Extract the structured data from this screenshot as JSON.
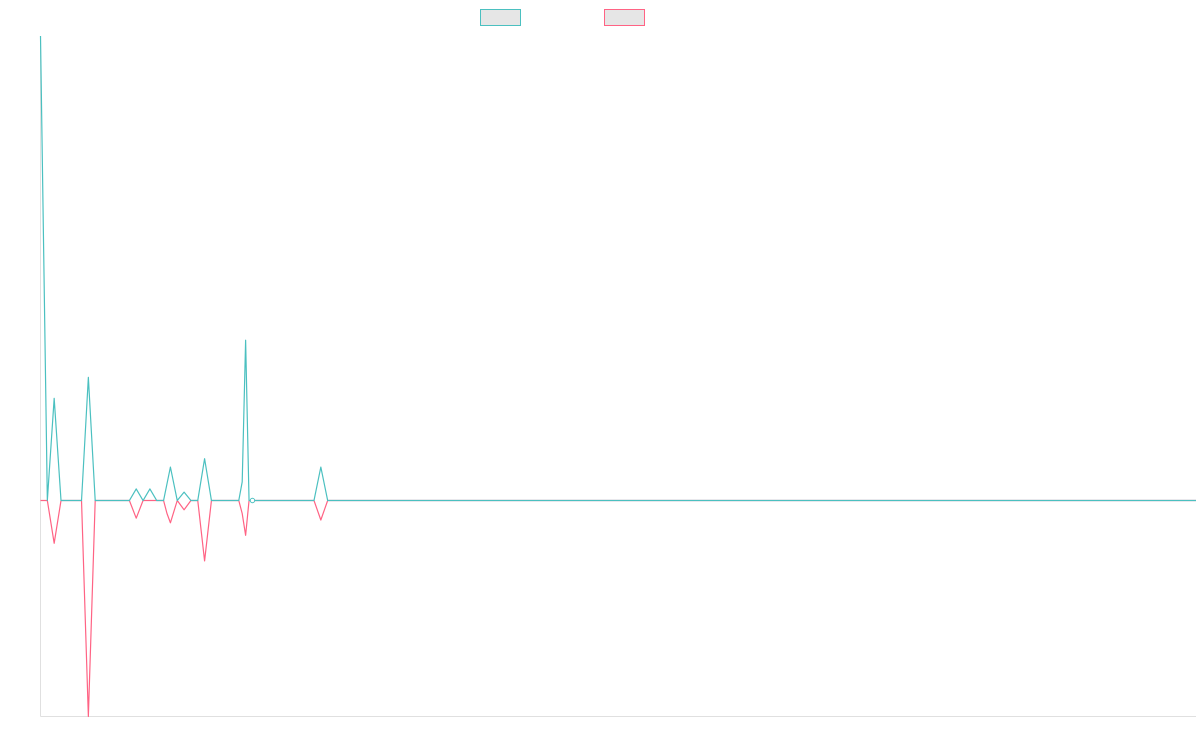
{
  "chart_data": {
    "type": "line",
    "title": "",
    "xlabel": "",
    "ylabel": "",
    "x_count": 170,
    "xlim": [
      0,
      169
    ],
    "ylim": [
      -465,
      1000
    ],
    "grid": false,
    "legend_position": "top-center",
    "series": [
      {
        "color": "#4bc0c0",
        "points": [
          [
            0,
            1000
          ],
          [
            1,
            0
          ],
          [
            2,
            220
          ],
          [
            3,
            0
          ],
          [
            6,
            0
          ],
          [
            7,
            265
          ],
          [
            8,
            0
          ],
          [
            13,
            0
          ],
          [
            14,
            25
          ],
          [
            15,
            0
          ],
          [
            16,
            25
          ],
          [
            17,
            0
          ],
          [
            18,
            0
          ],
          [
            19,
            72
          ],
          [
            20,
            0
          ],
          [
            21,
            18
          ],
          [
            22,
            0
          ],
          [
            23,
            0
          ],
          [
            24,
            90
          ],
          [
            25,
            0
          ],
          [
            29,
            0
          ],
          [
            29.5,
            40
          ],
          [
            30,
            345
          ],
          [
            30.5,
            0
          ],
          [
            31,
            0
          ],
          [
            40,
            0
          ],
          [
            41,
            72
          ],
          [
            42,
            0
          ],
          [
            169,
            0
          ]
        ]
      },
      {
        "color": "#ff6384",
        "points": [
          [
            0,
            0
          ],
          [
            1,
            0
          ],
          [
            2,
            -92
          ],
          [
            3,
            0
          ],
          [
            6,
            0
          ],
          [
            7,
            -465
          ],
          [
            8,
            0
          ],
          [
            13,
            0
          ],
          [
            14,
            -38
          ],
          [
            15,
            0
          ],
          [
            16,
            0
          ],
          [
            18,
            0
          ],
          [
            18.5,
            -28
          ],
          [
            19,
            -48
          ],
          [
            20,
            0
          ],
          [
            21,
            -20
          ],
          [
            22,
            0
          ],
          [
            23,
            0
          ],
          [
            24,
            -130
          ],
          [
            25,
            0
          ],
          [
            29,
            0
          ],
          [
            29.5,
            -28
          ],
          [
            30,
            -75
          ],
          [
            30.5,
            0
          ],
          [
            31,
            0
          ],
          [
            40,
            0
          ],
          [
            41,
            -42
          ],
          [
            42,
            0
          ],
          [
            169,
            0
          ]
        ]
      }
    ]
  }
}
